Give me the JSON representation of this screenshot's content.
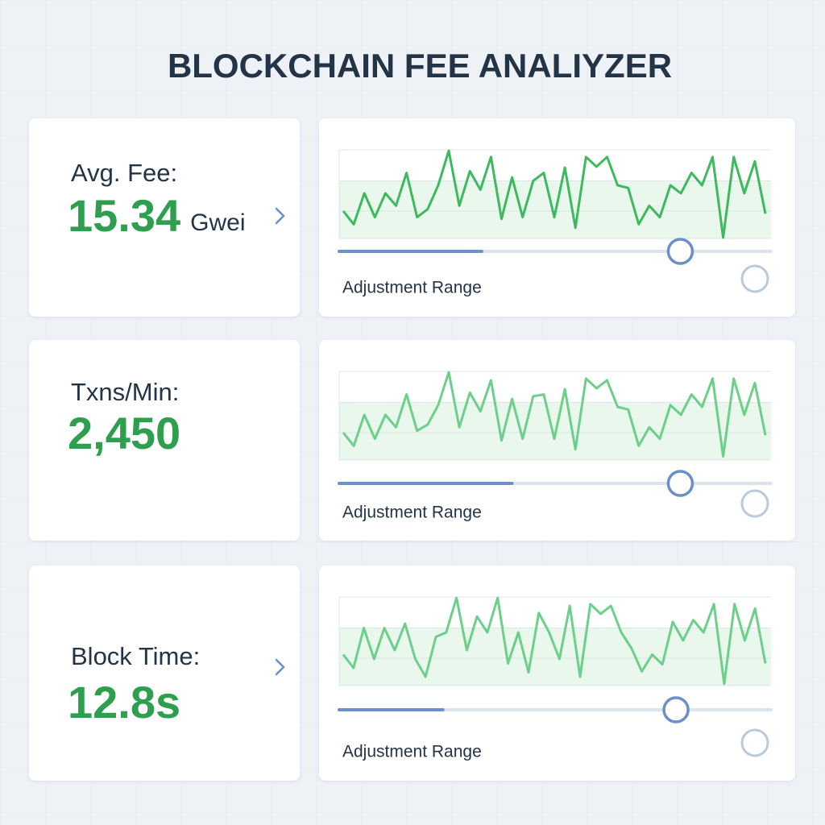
{
  "header": {
    "title": "BLOCKCHAIN FEE ANALIYZER"
  },
  "cards": [
    {
      "label": "Avg. Fee:",
      "value": "15.34",
      "unit": "Gwei",
      "chevron": true,
      "chart": {
        "type": "line",
        "color": "#3dba5f",
        "ylim": [
          0,
          100
        ],
        "values": [
          31,
          16,
          51,
          24,
          51,
          37,
          74,
          24,
          33,
          60,
          99,
          37,
          76,
          55,
          92,
          22,
          69,
          24,
          65,
          74,
          24,
          80,
          12,
          92,
          81,
          92,
          60,
          57,
          16,
          37,
          24,
          60,
          51,
          74,
          60,
          92,
          1,
          92,
          51,
          87,
          28
        ]
      },
      "slider": [
        33,
        79
      ],
      "caption": "Adjustment Range"
    },
    {
      "label": "Txns/Min:",
      "value": "2,450",
      "chevron": false,
      "chart": {
        "type": "line",
        "color": "#6ccf8a",
        "ylim": [
          0,
          100
        ],
        "values": [
          31,
          16,
          51,
          24,
          51,
          37,
          74,
          33,
          40,
          62,
          99,
          37,
          76,
          55,
          90,
          22,
          69,
          24,
          72,
          74,
          24,
          80,
          12,
          92,
          81,
          90,
          60,
          57,
          16,
          37,
          24,
          62,
          51,
          74,
          60,
          92,
          4,
          92,
          51,
          87,
          28
        ]
      },
      "slider": [
        40,
        79
      ],
      "caption": "Adjustment Range"
    },
    {
      "label": "Block Time:",
      "value": "12.8s",
      "chevron": true,
      "chart": {
        "type": "line",
        "color": "#6ccf8a",
        "ylim": [
          0,
          100
        ],
        "values": [
          35,
          20,
          65,
          30,
          65,
          40,
          70,
          30,
          10,
          55,
          60,
          99,
          40,
          78,
          60,
          99,
          25,
          60,
          15,
          82,
          60,
          30,
          90,
          10,
          92,
          81,
          90,
          60,
          42,
          16,
          35,
          24,
          72,
          51,
          74,
          60,
          92,
          2,
          92,
          51,
          87,
          25
        ]
      },
      "slider": [
        24,
        78
      ],
      "caption": "Adjustment Range"
    }
  ]
}
